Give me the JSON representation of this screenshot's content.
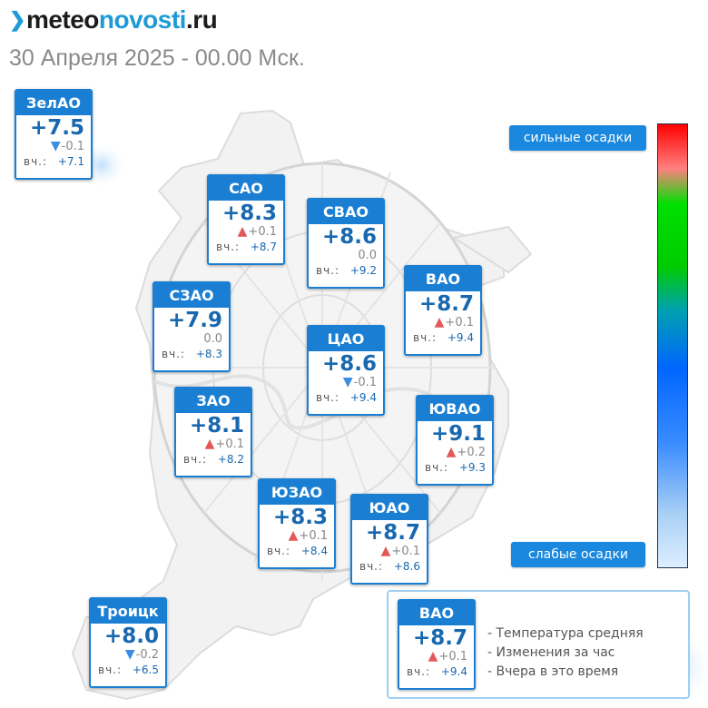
{
  "header": {
    "logo_prefix": "meteo",
    "logo_main": "novosti",
    "logo_suffix": ".ru",
    "datetime": "30 Апреля 2025 - 00.00 Мск."
  },
  "scale": {
    "top_label": "сильные осадки",
    "bottom_label": "слабые осадки"
  },
  "districts": [
    {
      "name": "ЗелАО",
      "temp": "+7.5",
      "trend": "down",
      "change": "-0.1",
      "yesterday_label": "вч.:",
      "yesterday": "+7.1"
    },
    {
      "name": "САО",
      "temp": "+8.3",
      "trend": "up",
      "change": "+0.1",
      "yesterday_label": "вч.:",
      "yesterday": "+8.7"
    },
    {
      "name": "СВАО",
      "temp": "+8.6",
      "trend": "none",
      "change": "0.0",
      "yesterday_label": "вч.:",
      "yesterday": "+9.2"
    },
    {
      "name": "ВАО",
      "temp": "+8.7",
      "trend": "up",
      "change": "+0.1",
      "yesterday_label": "вч.:",
      "yesterday": "+9.4"
    },
    {
      "name": "СЗАО",
      "temp": "+7.9",
      "trend": "none",
      "change": "0.0",
      "yesterday_label": "вч.:",
      "yesterday": "+8.3"
    },
    {
      "name": "ЦАО",
      "temp": "+8.6",
      "trend": "down",
      "change": "-0.1",
      "yesterday_label": "вч.:",
      "yesterday": "+9.4"
    },
    {
      "name": "ЗАО",
      "temp": "+8.1",
      "trend": "up",
      "change": "+0.1",
      "yesterday_label": "вч.:",
      "yesterday": "+8.2"
    },
    {
      "name": "ЮВАО",
      "temp": "+9.1",
      "trend": "up",
      "change": "+0.2",
      "yesterday_label": "вч.:",
      "yesterday": "+9.3"
    },
    {
      "name": "ЮЗАО",
      "temp": "+8.3",
      "trend": "up",
      "change": "+0.1",
      "yesterday_label": "вч.:",
      "yesterday": "+8.4"
    },
    {
      "name": "ЮАО",
      "temp": "+8.7",
      "trend": "up",
      "change": "+0.1",
      "yesterday_label": "вч.:",
      "yesterday": "+8.6"
    },
    {
      "name": "Троицк",
      "temp": "+8.0",
      "trend": "down",
      "change": "-0.2",
      "yesterday_label": "вч.:",
      "yesterday": "+6.5"
    }
  ],
  "legend": {
    "sample": {
      "name": "ВАО",
      "temp": "+8.7",
      "trend": "up",
      "change": "+0.1",
      "yesterday_label": "вч.:",
      "yesterday": "+9.4"
    },
    "line1": "- Температура средняя",
    "line2": "- Изменения за час",
    "line3": "- Вчера в это время"
  },
  "colors": {
    "card_header": "#1a7fd3",
    "temp_text": "#1868b0",
    "trend_up": "#e35959",
    "trend_down": "#3a8fe0"
  }
}
